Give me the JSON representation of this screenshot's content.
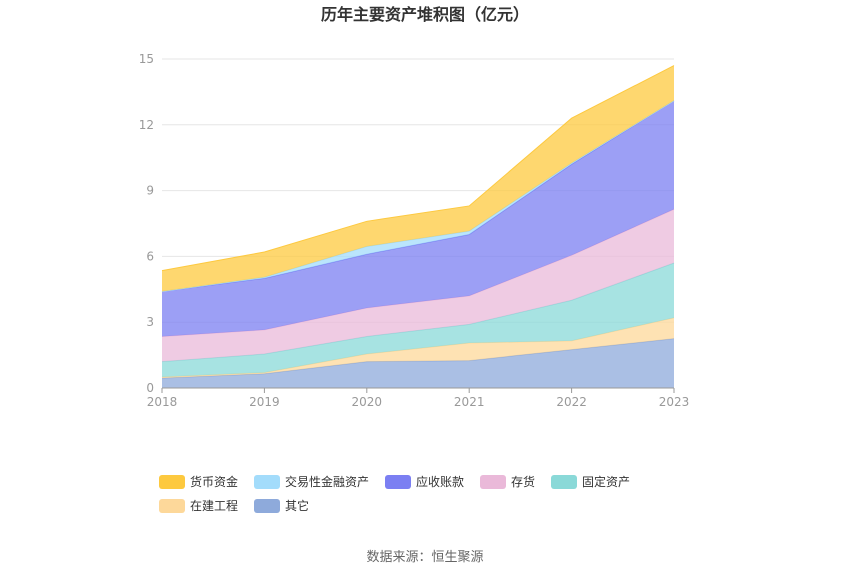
{
  "chart_data": {
    "type": "area",
    "stacked": true,
    "title": "历年主要资产堆积图（亿元）",
    "categories": [
      "2018",
      "2019",
      "2020",
      "2021",
      "2022",
      "2023"
    ],
    "ylim": [
      0,
      15
    ],
    "yticks": [
      "0",
      "3",
      "6",
      "9",
      "12",
      "15"
    ],
    "grid": true,
    "legend_position": "bottom-left",
    "series": [
      {
        "name": "其它",
        "color": "#8eaadb",
        "values": [
          0.45,
          0.65,
          1.2,
          1.25,
          1.75,
          2.25
        ]
      },
      {
        "name": "在建工程",
        "color": "#fdd89a",
        "values": [
          0.05,
          0.05,
          0.35,
          0.8,
          0.4,
          0.95
        ]
      },
      {
        "name": "固定资产",
        "color": "#8ad9d8",
        "values": [
          0.7,
          0.85,
          0.8,
          0.85,
          1.85,
          2.5
        ]
      },
      {
        "name": "存货",
        "color": "#eab9d9",
        "values": [
          1.15,
          1.1,
          1.3,
          1.3,
          2.05,
          2.45
        ]
      },
      {
        "name": "应收账款",
        "color": "#7b7ff2",
        "values": [
          2.05,
          2.35,
          2.45,
          2.8,
          4.15,
          4.95
        ]
      },
      {
        "name": "交易性金融资产",
        "color": "#a3dcfb",
        "values": [
          0.0,
          0.05,
          0.35,
          0.15,
          0.05,
          0.0
        ]
      },
      {
        "name": "货币资金",
        "color": "#fdc93f",
        "values": [
          0.95,
          1.15,
          1.15,
          1.15,
          2.05,
          1.6
        ]
      }
    ],
    "legend_order": [
      "货币资金",
      "交易性金融资产",
      "应收账款",
      "存货",
      "固定资产",
      "在建工程",
      "其它"
    ]
  },
  "source_text": "数据来源：恒生聚源"
}
